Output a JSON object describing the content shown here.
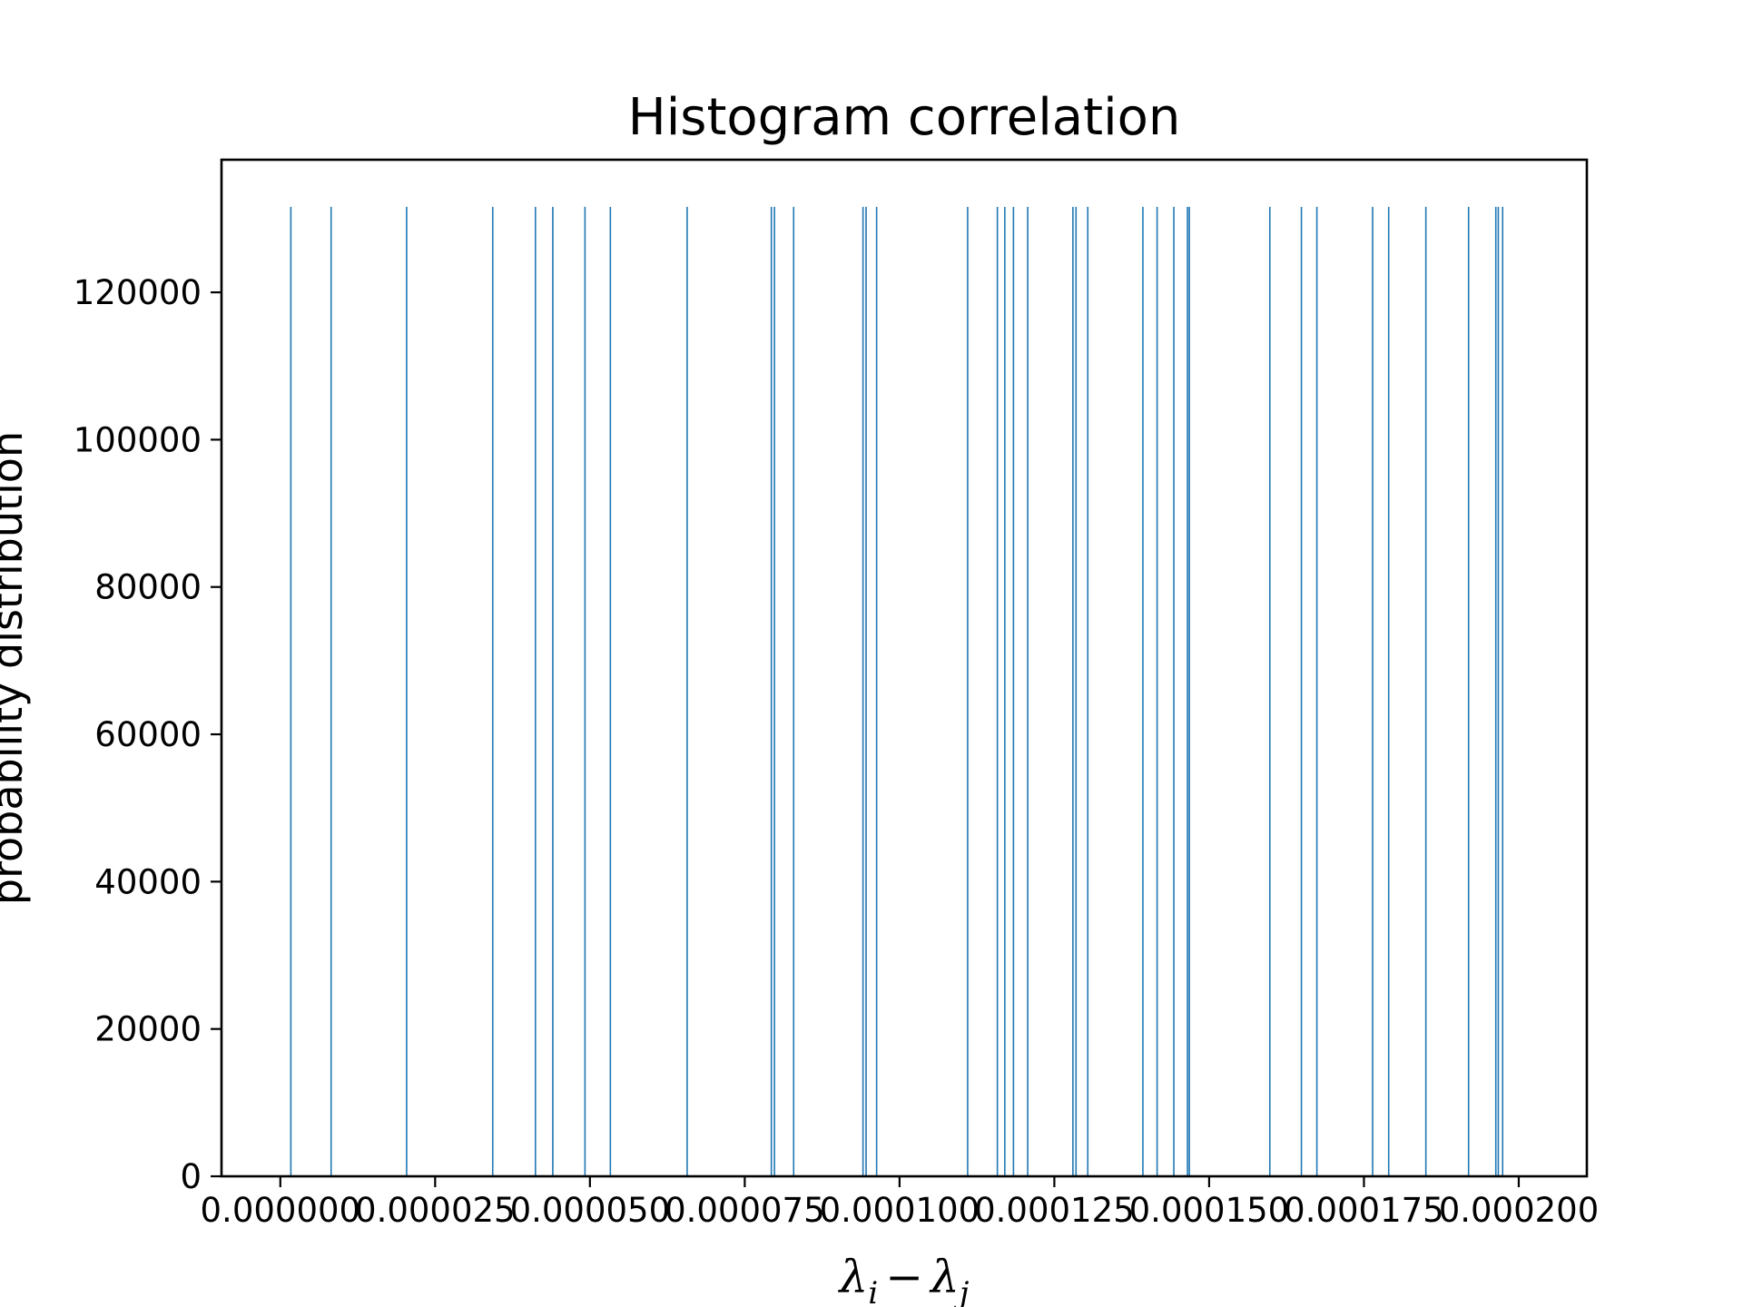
{
  "chart_data": {
    "type": "bar",
    "title": "Histogram correlation",
    "xlabel": {
      "lambda": "λ",
      "sub_i": "i",
      "minus": "−",
      "sub_j": "j"
    },
    "ylabel": "probability distribution",
    "xlim": [
      -9.5e-06,
      0.000211
    ],
    "ylim": [
      0,
      138000
    ],
    "xticks": [
      0.0,
      2.5e-05,
      5e-05,
      7.5e-05,
      0.0001,
      0.000125,
      0.00015,
      0.000175,
      0.0002
    ],
    "xtick_labels": [
      "0.000000",
      "0.000025",
      "0.000050",
      "0.000075",
      "0.000100",
      "0.000125",
      "0.000150",
      "0.000175",
      "0.000200"
    ],
    "yticks": [
      0,
      20000,
      40000,
      60000,
      80000,
      100000,
      120000
    ],
    "ytick_labels": [
      "0",
      "20000",
      "40000",
      "60000",
      "80000",
      "100000",
      "120000"
    ],
    "bar_color": "#1f77b4",
    "bar_height": 131600,
    "bar_positions": [
      1.7e-06,
      8.2e-06,
      2.04e-05,
      3.43e-05,
      4.12e-05,
      4.4e-05,
      4.92e-05,
      5.33e-05,
      6.57e-05,
      7.93e-05,
      7.98e-05,
      8.29e-05,
      9.41e-05,
      9.46e-05,
      9.63e-05,
      0.000111,
      0.0001158,
      0.000117,
      0.0001184,
      0.0001207,
      0.000128,
      0.0001285,
      0.0001304,
      0.0001393,
      0.0001416,
      0.0001443,
      0.0001465,
      0.0001468,
      0.0001598,
      0.0001649,
      0.0001674,
      0.0001764,
      0.000179,
      0.000185,
      0.0001919,
      0.0001963,
      0.0001967,
      0.0001974
    ],
    "grid": false,
    "legend": "none"
  }
}
